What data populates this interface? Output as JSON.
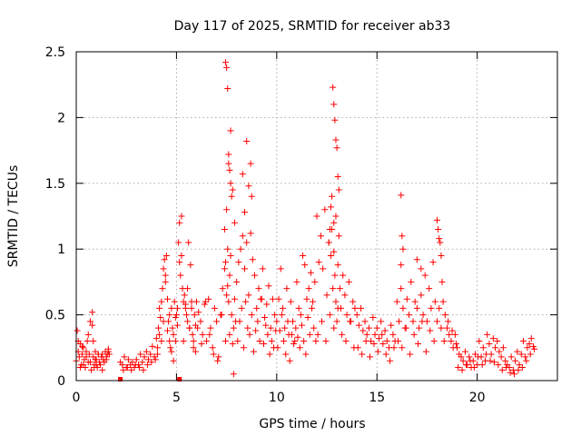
{
  "chart_data": {
    "type": "scatter",
    "title": "Day 117 of 2025, SRMTID for receiver ab33",
    "xlabel": "GPS time / hours",
    "ylabel": "SRMTID / TECUs",
    "xlim": [
      0,
      24
    ],
    "ylim": [
      0,
      2.5
    ],
    "xticks": [
      0,
      5,
      10,
      15,
      20
    ],
    "xtick_labels": [
      "0",
      "5",
      "10",
      "15",
      "20"
    ],
    "yticks": [
      0,
      0.5,
      1,
      1.5,
      2,
      2.5
    ],
    "ytick_labels": [
      "0",
      "0.5",
      "1",
      "1.5",
      "2",
      "2.5"
    ],
    "grid": true,
    "marker": "+",
    "color": "#ff0000",
    "x": [
      0.0,
      0.05,
      0.1,
      0.15,
      0.2,
      0.25,
      0.3,
      0.35,
      0.4,
      0.45,
      0.5,
      0.55,
      0.6,
      0.65,
      0.7,
      0.75,
      0.8,
      0.85,
      0.9,
      0.95,
      1.0,
      1.05,
      1.1,
      1.15,
      1.2,
      1.25,
      1.3,
      1.35,
      1.4,
      1.45,
      1.5,
      1.55,
      1.6,
      1.65,
      0.1,
      0.2,
      0.3,
      0.35,
      0.5,
      0.6,
      0.7,
      0.8,
      0.85,
      0.9,
      0.95,
      1.0,
      1.1,
      1.3,
      1.5,
      1.6,
      2.2,
      2.3,
      2.4,
      2.5,
      2.6,
      2.7,
      2.8,
      2.9,
      3.0,
      3.1,
      3.2,
      3.3,
      3.4,
      3.5,
      3.6,
      3.7,
      3.8,
      3.9,
      2.35,
      2.55,
      2.75,
      2.95,
      3.15,
      3.35,
      3.55,
      3.75,
      3.95,
      4.0,
      4.05,
      4.1,
      4.15,
      4.2,
      4.25,
      4.3,
      4.35,
      4.4,
      4.45,
      4.5,
      4.55,
      4.6,
      4.65,
      4.7,
      4.75,
      4.8,
      4.85,
      4.9,
      4.95,
      5.0,
      5.05,
      5.1,
      5.15,
      5.2,
      5.25,
      5.3,
      5.35,
      5.4,
      5.45,
      5.5,
      5.55,
      5.6,
      5.65,
      5.7,
      5.75,
      5.8,
      5.85,
      5.9,
      5.95,
      4.05,
      4.15,
      4.25,
      4.35,
      4.45,
      4.55,
      4.65,
      4.75,
      4.85,
      4.95,
      5.05,
      5.15,
      5.25,
      5.35,
      5.45,
      5.55,
      5.65,
      5.75,
      5.85,
      5.95,
      6.0,
      6.1,
      6.2,
      6.3,
      6.4,
      6.5,
      6.6,
      6.7,
      6.8,
      6.9,
      7.0,
      7.1,
      7.2,
      7.3,
      7.4,
      7.5,
      7.55,
      7.6,
      7.65,
      7.7,
      7.75,
      7.8,
      7.85,
      7.9,
      7.95,
      6.05,
      6.25,
      6.45,
      6.65,
      6.85,
      7.05,
      7.25,
      7.45,
      7.65,
      7.85,
      7.45,
      7.5,
      7.55,
      7.6,
      7.65,
      7.7,
      7.75,
      7.6,
      7.5,
      7.4,
      7.7,
      7.8,
      7.9,
      7.55,
      7.45,
      8.0,
      8.1,
      8.2,
      8.3,
      8.4,
      8.5,
      8.6,
      8.7,
      8.8,
      8.9,
      9.0,
      9.1,
      9.2,
      9.3,
      9.4,
      9.5,
      9.6,
      9.7,
      9.8,
      9.9,
      8.05,
      8.15,
      8.25,
      8.35,
      8.45,
      8.55,
      8.65,
      8.75,
      8.85,
      8.95,
      9.05,
      9.15,
      9.25,
      9.35,
      9.45,
      9.55,
      9.65,
      9.75,
      9.85,
      9.95,
      8.3,
      8.5,
      8.7,
      8.75,
      8.4,
      8.6,
      10.0,
      10.1,
      10.2,
      10.3,
      10.4,
      10.5,
      10.6,
      10.7,
      10.8,
      10.9,
      11.0,
      11.1,
      11.2,
      11.3,
      11.4,
      11.5,
      11.6,
      11.7,
      11.8,
      11.9,
      10.05,
      10.15,
      10.25,
      10.35,
      10.45,
      10.55,
      10.65,
      10.75,
      10.85,
      10.95,
      11.05,
      11.15,
      11.25,
      11.35,
      11.45,
      11.55,
      11.65,
      11.75,
      11.85,
      11.95,
      12.0,
      12.1,
      12.2,
      12.3,
      12.4,
      12.5,
      12.6,
      12.7,
      12.75,
      12.8,
      12.85,
      12.9,
      12.95,
      13.0,
      13.05,
      13.1,
      13.15,
      13.2,
      13.3,
      13.4,
      13.5,
      13.6,
      13.7,
      13.8,
      13.9,
      12.05,
      12.25,
      12.45,
      12.65,
      12.85,
      13.05,
      13.25,
      13.45,
      13.65,
      13.85,
      12.8,
      12.85,
      12.9,
      12.95,
      13.0,
      13.05,
      12.75,
      12.7,
      12.65,
      12.6,
      13.1,
      12.95,
      12.85,
      14.0,
      14.1,
      14.2,
      14.3,
      14.4,
      14.5,
      14.6,
      14.7,
      14.8,
      14.9,
      15.0,
      15.1,
      15.2,
      15.3,
      15.4,
      15.5,
      15.6,
      15.7,
      15.8,
      15.9,
      14.05,
      14.25,
      14.45,
      14.65,
      14.85,
      15.05,
      15.25,
      15.45,
      15.65,
      15.85,
      16.0,
      16.1,
      16.2,
      16.3,
      16.4,
      16.5,
      16.6,
      16.7,
      16.8,
      16.9,
      17.0,
      17.1,
      17.2,
      17.3,
      17.4,
      17.5,
      17.6,
      17.7,
      17.8,
      17.9,
      16.05,
      16.25,
      16.45,
      16.65,
      16.85,
      17.05,
      17.25,
      17.45,
      17.65,
      17.85,
      16.2,
      16.25,
      16.3,
      16.2,
      17.0,
      17.2,
      18.0,
      18.05,
      18.1,
      18.15,
      18.2,
      18.25,
      18.3,
      18.4,
      18.5,
      18.6,
      18.7,
      18.8,
      18.9,
      18.0,
      18.1,
      18.2,
      18.35,
      18.55,
      18.75,
      18.95,
      19.0,
      19.1,
      19.2,
      19.3,
      19.4,
      19.5,
      19.6,
      19.7,
      19.8,
      19.9,
      20.0,
      20.1,
      20.2,
      20.3,
      20.4,
      20.5,
      20.6,
      20.7,
      20.8,
      20.9,
      19.05,
      19.25,
      19.45,
      19.65,
      19.85,
      20.05,
      20.25,
      20.45,
      20.65,
      20.85,
      21.0,
      21.1,
      21.2,
      21.3,
      21.4,
      21.5,
      21.6,
      21.7,
      21.8,
      21.9,
      22.0,
      22.1,
      22.2,
      22.3,
      22.4,
      22.5,
      22.6,
      22.7,
      22.8,
      21.05,
      21.25,
      21.45,
      21.65,
      21.85,
      22.05,
      22.25,
      22.45,
      22.65,
      22.85
    ],
    "y": [
      0.15,
      0.38,
      0.22,
      0.18,
      0.28,
      0.12,
      0.2,
      0.25,
      0.16,
      0.1,
      0.18,
      0.3,
      0.14,
      0.2,
      0.45,
      0.08,
      0.52,
      0.18,
      0.12,
      0.22,
      0.16,
      0.1,
      0.2,
      0.14,
      0.12,
      0.18,
      0.2,
      0.16,
      0.14,
      0.22,
      0.18,
      0.2,
      0.24,
      0.2,
      0.3,
      0.1,
      0.26,
      0.12,
      0.22,
      0.35,
      0.14,
      0.42,
      0.3,
      0.1,
      0.16,
      0.12,
      0.2,
      0.08,
      0.16,
      0.22,
      0.14,
      0.12,
      0.18,
      0.1,
      0.16,
      0.12,
      0.14,
      0.1,
      0.16,
      0.12,
      0.2,
      0.14,
      0.18,
      0.22,
      0.16,
      0.2,
      0.26,
      0.18,
      0.08,
      0.1,
      0.08,
      0.12,
      0.1,
      0.08,
      0.12,
      0.14,
      0.16,
      0.32,
      0.25,
      0.4,
      0.55,
      0.48,
      0.6,
      0.7,
      0.85,
      0.92,
      0.75,
      0.95,
      0.62,
      0.45,
      0.3,
      0.25,
      0.55,
      0.4,
      0.35,
      0.6,
      0.48,
      0.5,
      0.55,
      1.05,
      0.9,
      0.8,
      1.25,
      0.7,
      0.6,
      0.65,
      0.55,
      0.5,
      0.45,
      1.05,
      0.4,
      0.88,
      0.6,
      0.35,
      0.25,
      0.5,
      0.42,
      0.2,
      0.35,
      0.3,
      0.45,
      0.8,
      0.38,
      0.5,
      0.22,
      0.15,
      0.3,
      0.42,
      1.2,
      0.95,
      0.3,
      0.58,
      0.7,
      0.4,
      0.55,
      0.3,
      0.22,
      0.6,
      0.52,
      0.45,
      0.35,
      0.58,
      0.3,
      0.62,
      0.4,
      0.25,
      0.55,
      0.45,
      0.18,
      0.5,
      0.7,
      0.85,
      0.65,
      0.72,
      0.6,
      0.35,
      0.95,
      0.5,
      0.28,
      0.4,
      0.62,
      0.45,
      0.4,
      0.28,
      0.6,
      0.35,
      0.2,
      0.15,
      0.5,
      0.3,
      0.8,
      0.05,
      2.42,
      2.38,
      2.22,
      1.72,
      1.6,
      1.5,
      1.4,
      1.65,
      1.3,
      1.15,
      1.9,
      1.45,
      1.2,
      1.0,
      0.9,
      0.75,
      0.9,
      1.0,
      1.1,
      0.85,
      1.05,
      0.65,
      1.12,
      0.92,
      0.8,
      0.55,
      0.7,
      0.62,
      0.85,
      0.48,
      0.58,
      0.72,
      0.4,
      0.62,
      0.5,
      0.3,
      0.45,
      0.55,
      0.25,
      0.6,
      0.4,
      0.35,
      0.5,
      0.22,
      0.38,
      0.45,
      0.3,
      0.62,
      0.28,
      0.42,
      0.35,
      0.2,
      0.3,
      0.25,
      0.38,
      1.57,
      1.82,
      1.65,
      1.4,
      1.28,
      1.48,
      0.45,
      0.62,
      0.85,
      0.55,
      0.4,
      0.7,
      0.35,
      0.6,
      0.45,
      0.3,
      0.75,
      0.55,
      0.5,
      0.95,
      0.88,
      0.62,
      0.7,
      0.82,
      0.6,
      0.75,
      0.25,
      0.38,
      0.5,
      0.3,
      0.2,
      0.45,
      0.15,
      0.35,
      0.28,
      0.4,
      0.33,
      0.25,
      0.42,
      0.3,
      0.2,
      0.48,
      0.35,
      0.55,
      0.4,
      0.3,
      1.25,
      0.9,
      1.1,
      0.85,
      1.3,
      0.65,
      1.05,
      0.95,
      1.15,
      0.7,
      1.2,
      0.8,
      0.6,
      0.45,
      0.88,
      1.1,
      0.7,
      0.55,
      0.8,
      0.65,
      0.5,
      0.75,
      0.45,
      0.6,
      0.55,
      0.35,
      0.45,
      0.3,
      0.5,
      0.4,
      0.55,
      0.35,
      0.3,
      0.45,
      0.25,
      2.23,
      2.1,
      1.98,
      1.83,
      1.77,
      1.55,
      1.4,
      1.32,
      1.15,
      1.05,
      1.45,
      1.25,
      0.98,
      0.5,
      0.42,
      0.55,
      0.38,
      0.45,
      0.35,
      0.4,
      0.3,
      0.48,
      0.35,
      0.4,
      0.32,
      0.45,
      0.28,
      0.38,
      0.3,
      0.25,
      0.42,
      0.35,
      0.3,
      0.25,
      0.2,
      0.3,
      0.18,
      0.28,
      0.22,
      0.35,
      0.2,
      0.15,
      0.25,
      0.6,
      0.45,
      0.7,
      0.55,
      0.4,
      0.62,
      0.5,
      0.75,
      0.45,
      0.6,
      0.55,
      0.4,
      0.65,
      0.5,
      0.8,
      0.45,
      0.7,
      0.55,
      0.9,
      0.6,
      0.3,
      0.25,
      0.4,
      0.2,
      0.35,
      0.28,
      0.45,
      0.22,
      0.38,
      0.3,
      1.41,
      1.1,
      1.0,
      0.88,
      0.92,
      0.85,
      1.22,
      1.15,
      1.08,
      1.05,
      0.95,
      0.75,
      0.6,
      0.5,
      0.4,
      0.35,
      0.3,
      0.25,
      0.35,
      0.45,
      0.55,
      0.4,
      0.3,
      0.45,
      0.38,
      0.28,
      0.25,
      0.2,
      0.18,
      0.15,
      0.22,
      0.12,
      0.18,
      0.1,
      0.15,
      0.2,
      0.12,
      0.3,
      0.18,
      0.25,
      0.15,
      0.35,
      0.28,
      0.2,
      0.32,
      0.25,
      0.1,
      0.08,
      0.12,
      0.15,
      0.1,
      0.18,
      0.12,
      0.2,
      0.15,
      0.14,
      0.3,
      0.22,
      0.18,
      0.25,
      0.15,
      0.12,
      0.1,
      0.18,
      0.08,
      0.15,
      0.22,
      0.12,
      0.2,
      0.3,
      0.18,
      0.25,
      0.28,
      0.32,
      0.26,
      0.12,
      0.08,
      0.1,
      0.06,
      0.05,
      0.08,
      0.1,
      0.15,
      0.2,
      0.24
    ],
    "square_markers": [
      {
        "x": 2.2,
        "y": 0.0
      },
      {
        "x": 5.15,
        "y": 0.0
      }
    ]
  }
}
